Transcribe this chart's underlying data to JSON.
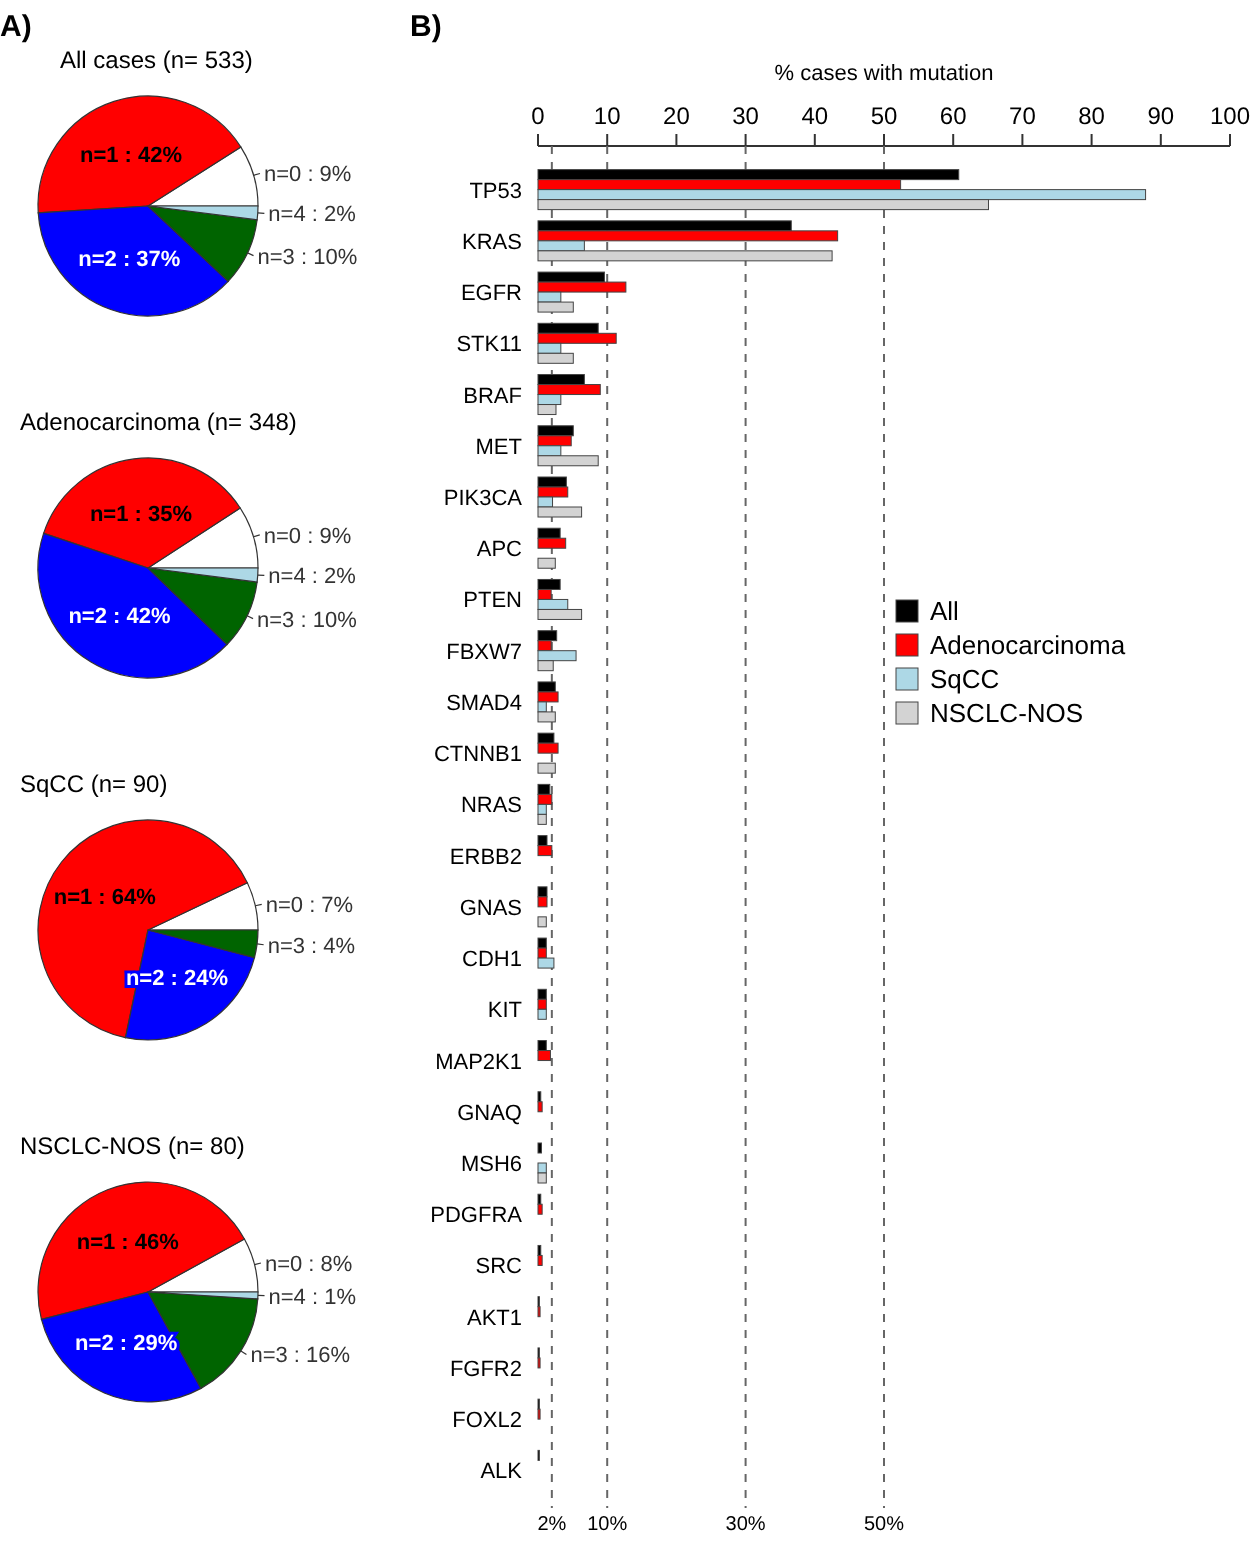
{
  "chart_data": [
    {
      "type": "pie",
      "title": "All cases (n= 533)",
      "annotations": [
        "A)"
      ],
      "categories": [
        "n=0 : 9%",
        "n=1 : 42%",
        "n=2 : 37%",
        "n=3 : 10%",
        "n=4 : 2%"
      ],
      "values": [
        9,
        42,
        37,
        10,
        2
      ],
      "colors": [
        "#ffffff",
        "#ff0000",
        "#0000ff",
        "#006400",
        "#add8e6"
      ]
    },
    {
      "type": "pie",
      "title": "Adenocarcinoma (n= 348)",
      "categories": [
        "n=0 : 9%",
        "n=1 : 35%",
        "n=2 : 42%",
        "n=3 : 10%",
        "n=4 : 2%"
      ],
      "values": [
        9,
        35,
        42,
        10,
        2
      ],
      "colors": [
        "#ffffff",
        "#ff0000",
        "#0000ff",
        "#006400",
        "#add8e6"
      ]
    },
    {
      "type": "pie",
      "title": "SqCC (n= 90)",
      "categories": [
        "n=0 : 7%",
        "n=1 : 64%",
        "n=2 : 24%",
        "n=3 : 4%"
      ],
      "values": [
        7,
        64,
        24,
        4
      ],
      "colors": [
        "#ffffff",
        "#ff0000",
        "#0000ff",
        "#006400"
      ]
    },
    {
      "type": "pie",
      "title": "NSCLC-NOS (n= 80)",
      "categories": [
        "n=0 : 8%",
        "n=1 : 46%",
        "n=2 : 29%",
        "n=3 : 16%",
        "n=4 : 1%"
      ],
      "values": [
        8,
        46,
        29,
        16,
        1
      ],
      "colors": [
        "#ffffff",
        "#ff0000",
        "#0000ff",
        "#006400",
        "#add8e6"
      ]
    },
    {
      "type": "bar",
      "orientation": "horizontal",
      "xlabel": "% cases with mutation",
      "annotations": [
        "B)"
      ],
      "legend": "right",
      "xlim": [
        0,
        100
      ],
      "xticks": [
        0,
        10,
        20,
        30,
        40,
        50,
        60,
        70,
        80,
        90,
        100
      ],
      "categories": [
        "TP53",
        "KRAS",
        "EGFR",
        "STK11",
        "BRAF",
        "MET",
        "PIK3CA",
        "APC",
        "PTEN",
        "FBXW7",
        "SMAD4",
        "CTNNB1",
        "NRAS",
        "ERBB2",
        "GNAS",
        "CDH1",
        "KIT",
        "MAP2K1",
        "GNAQ",
        "MSH6",
        "PDGFRA",
        "SRC",
        "AKT1",
        "FGFR2",
        "FOXL2",
        "ALK"
      ],
      "series": [
        {
          "name": "All",
          "color": "#000000",
          "values": [
            60.8,
            36.6,
            9.6,
            8.7,
            6.7,
            5.1,
            4.1,
            3.2,
            3.2,
            2.7,
            2.5,
            2.3,
            1.7,
            1.3,
            1.3,
            1.2,
            1.2,
            1.2,
            0.4,
            0.5,
            0.4,
            0.4,
            0.2,
            0.2,
            0.2,
            0.2
          ]
        },
        {
          "name": "Adenocarcinoma",
          "color": "#ff0000",
          "values": [
            52.4,
            43.3,
            12.7,
            11.3,
            9.0,
            4.8,
            4.3,
            4.0,
            1.9,
            1.9,
            2.9,
            2.9,
            2.0,
            2.0,
            1.3,
            1.2,
            1.2,
            1.8,
            0.6,
            0,
            0.6,
            0.6,
            0.3,
            0.3,
            0.3,
            0
          ]
        },
        {
          "name": "SqCC",
          "color": "#add8e6",
          "values": [
            87.8,
            6.7,
            3.3,
            3.3,
            3.3,
            3.3,
            2.1,
            0,
            4.3,
            5.5,
            1.2,
            0,
            1.2,
            0,
            0,
            2.3,
            1.2,
            0,
            0,
            1.2,
            0,
            0,
            0,
            0,
            0,
            0
          ]
        },
        {
          "name": "NSCLC-NOS",
          "color": "#d3d3d3",
          "values": [
            65.1,
            42.5,
            5.1,
            5.1,
            2.6,
            8.7,
            6.3,
            2.5,
            6.3,
            2.2,
            2.5,
            2.5,
            1.2,
            0,
            1.2,
            0,
            0,
            0,
            0,
            1.2,
            0,
            0,
            0,
            0,
            0,
            0
          ]
        }
      ],
      "ref_lines": [
        {
          "axis": "x",
          "value": 2,
          "label": "2%",
          "color": "#666666",
          "line_style": "dashed"
        },
        {
          "axis": "x",
          "value": 10,
          "label": "10%",
          "color": "#666666",
          "line_style": "dashed"
        },
        {
          "axis": "x",
          "value": 30,
          "label": "30%",
          "color": "#666666",
          "line_style": "dashed"
        },
        {
          "axis": "x",
          "value": 50,
          "label": "50%",
          "color": "#666666",
          "line_style": "dashed"
        }
      ]
    }
  ]
}
